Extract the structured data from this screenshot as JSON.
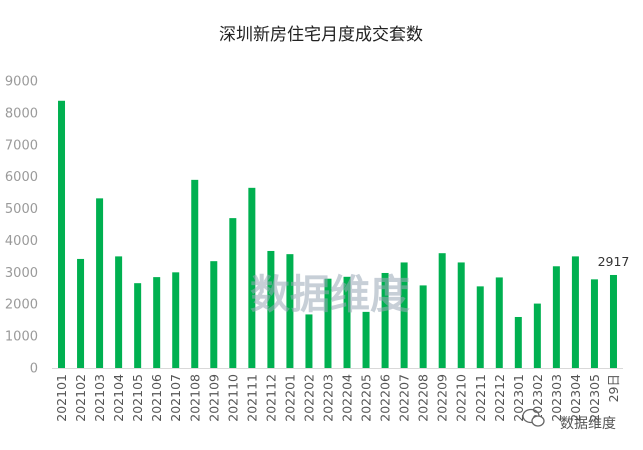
{
  "chart_data": {
    "type": "bar",
    "title": "深圳新房住宅月度成交套数",
    "categories": [
      "202101",
      "202102",
      "202103",
      "202104",
      "202105",
      "202106",
      "202107",
      "202108",
      "202109",
      "202110",
      "202111",
      "202112",
      "202201",
      "202202",
      "202203",
      "202204",
      "202205",
      "202206",
      "202207",
      "202208",
      "202209",
      "202210",
      "202211",
      "202212",
      "202301",
      "202302",
      "202303",
      "202304",
      "202305",
      "29日"
    ],
    "values": [
      8380,
      3420,
      5320,
      3500,
      2660,
      2850,
      3000,
      5900,
      3350,
      4700,
      5650,
      3670,
      3570,
      1680,
      2800,
      2860,
      1760,
      2980,
      3310,
      2590,
      3600,
      3310,
      2560,
      2840,
      1600,
      2020,
      3190,
      3500,
      2780,
      2917
    ],
    "ylim": [
      0,
      9000
    ],
    "ytick_step": 1000,
    "yticks": [
      "0",
      "1000",
      "2000",
      "3000",
      "4000",
      "5000",
      "6000",
      "7000",
      "8000",
      "9000"
    ],
    "bar_color": "#00b050",
    "data_labels": [
      {
        "index": 29,
        "text": "2917"
      }
    ],
    "grid": false,
    "legend": "none"
  },
  "watermark": {
    "center_text": "数据维度",
    "corner_text": "数据维度"
  }
}
